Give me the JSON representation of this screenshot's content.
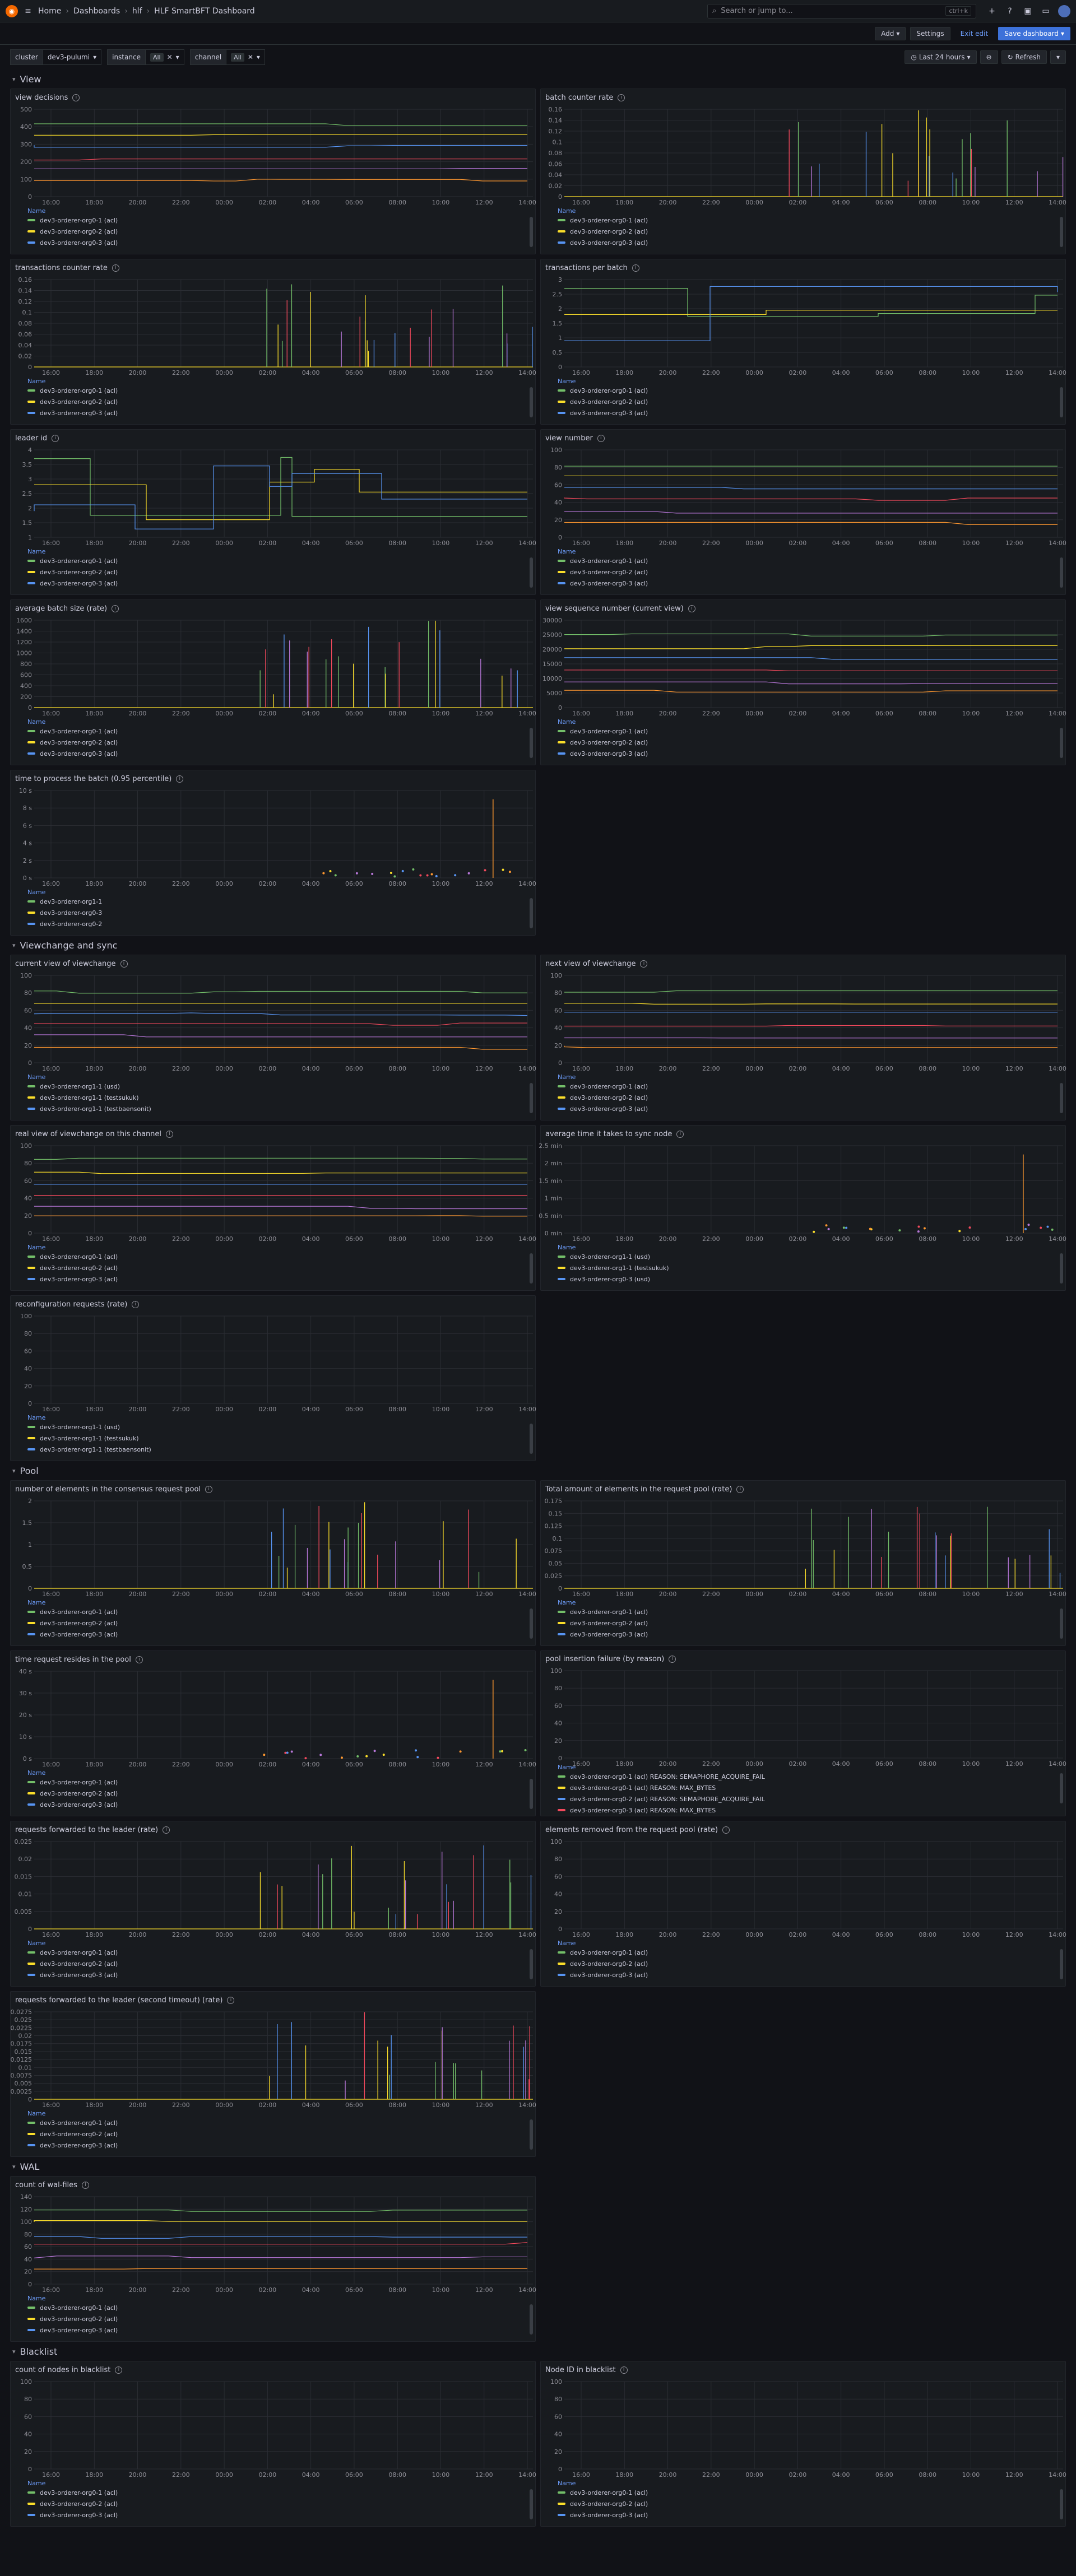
{
  "breadcrumb": {
    "home": "Home",
    "dashboards": "Dashboards",
    "folder": "hlf",
    "title": "HLF SmartBFT Dashboard"
  },
  "search": {
    "placeholder": "Search or jump to...",
    "shortcut": "ctrl+k"
  },
  "toolbar": {
    "add": "Add",
    "settings": "Settings",
    "exit": "Exit edit",
    "save": "Save dashboard"
  },
  "variables": [
    {
      "label": "cluster",
      "value": "dev3-pulumi"
    },
    {
      "label": "instance",
      "value": "All"
    },
    {
      "label": "channel",
      "value": "All"
    }
  ],
  "time": {
    "range": "Last 24 hours",
    "refresh": "Refresh"
  },
  "legend_header": "Name",
  "xticks": [
    "16:00",
    "18:00",
    "20:00",
    "22:00",
    "00:00",
    "02:00",
    "04:00",
    "06:00",
    "08:00",
    "10:00",
    "12:00",
    "14:00"
  ],
  "rows": [
    {
      "title": "View",
      "panels": [
        {
          "title": "view decisions",
          "yticks": [
            "500",
            "400",
            "300",
            "200",
            "100",
            "0"
          ],
          "legend": [
            "dev3-orderer-org0-1 (acl)",
            "dev3-orderer-org0-2 (acl)",
            "dev3-orderer-org0-3 (acl)"
          ],
          "kind": "lines"
        },
        {
          "title": "batch counter rate",
          "yticks": [
            "0.16",
            "0.14",
            "0.12",
            "0.1",
            "0.08",
            "0.06",
            "0.04",
            "0.02",
            "0"
          ],
          "legend": [
            "dev3-orderer-org0-1 (acl)",
            "dev3-orderer-org0-2 (acl)",
            "dev3-orderer-org0-3 (acl)"
          ],
          "kind": "spikes"
        },
        {
          "title": "transactions counter rate",
          "yticks": [
            "0.16",
            "0.14",
            "0.12",
            "0.1",
            "0.08",
            "0.06",
            "0.04",
            "0.02",
            "0"
          ],
          "legend": [
            "dev3-orderer-org0-1 (acl)",
            "dev3-orderer-org0-2 (acl)",
            "dev3-orderer-org0-3 (acl)"
          ],
          "kind": "spikes"
        },
        {
          "title": "transactions per batch",
          "yticks": [
            "3",
            "2.5",
            "2",
            "1.5",
            "1",
            "0.5",
            "0"
          ],
          "legend": [
            "dev3-orderer-org0-1 (acl)",
            "dev3-orderer-org0-2 (acl)",
            "dev3-orderer-org0-3 (acl)"
          ],
          "kind": "steps"
        },
        {
          "title": "leader id",
          "yticks": [
            "4",
            "3.5",
            "3",
            "2.5",
            "2",
            "1.5",
            "1"
          ],
          "legend": [
            "dev3-orderer-org0-1 (acl)",
            "dev3-orderer-org0-2 (acl)",
            "dev3-orderer-org0-3 (acl)"
          ],
          "kind": "steps"
        },
        {
          "title": "view number",
          "yticks": [
            "100",
            "80",
            "60",
            "40",
            "20",
            "0"
          ],
          "legend": [
            "dev3-orderer-org0-1 (acl)",
            "dev3-orderer-org0-2 (acl)",
            "dev3-orderer-org0-3 (acl)"
          ],
          "kind": "lines"
        },
        {
          "title": "average batch size (rate)",
          "yticks": [
            "1600",
            "1400",
            "1200",
            "1000",
            "800",
            "600",
            "400",
            "200",
            "0"
          ],
          "legend": [
            "dev3-orderer-org0-1 (acl)",
            "dev3-orderer-org0-2 (acl)",
            "dev3-orderer-org0-3 (acl)"
          ],
          "kind": "spikes"
        },
        {
          "title": "view sequence number (current view)",
          "yticks": [
            "30000",
            "25000",
            "20000",
            "15000",
            "10000",
            "5000",
            "0"
          ],
          "legend": [
            "dev3-orderer-org0-1 (acl)",
            "dev3-orderer-org0-2 (acl)",
            "dev3-orderer-org0-3 (acl)"
          ],
          "kind": "lines"
        },
        {
          "title": "time to process the batch (0.95 percentile)",
          "yticks": [
            "10 s",
            "8 s",
            "6 s",
            "4 s",
            "2 s",
            "0 s"
          ],
          "legend": [
            "dev3-orderer-org1-1",
            "dev3-orderer-org0-3",
            "dev3-orderer-org0-2"
          ],
          "kind": "dots"
        }
      ]
    },
    {
      "title": "Viewchange and sync",
      "panels": [
        {
          "title": "current view of viewchange",
          "yticks": [
            "100",
            "80",
            "60",
            "40",
            "20",
            "0"
          ],
          "legend": [
            "dev3-orderer-org1-1 (usd)",
            "dev3-orderer-org1-1 (testsukuk)",
            "dev3-orderer-org1-1 (testbaensonit)"
          ],
          "kind": "lines"
        },
        {
          "title": "next view of viewchange",
          "yticks": [
            "100",
            "80",
            "60",
            "40",
            "20",
            "0"
          ],
          "legend": [
            "dev3-orderer-org0-1 (acl)",
            "dev3-orderer-org0-2 (acl)",
            "dev3-orderer-org0-3 (acl)"
          ],
          "kind": "lines"
        },
        {
          "title": "real view of viewchange on this channel",
          "yticks": [
            "100",
            "80",
            "60",
            "40",
            "20",
            "0"
          ],
          "legend": [
            "dev3-orderer-org0-1 (acl)",
            "dev3-orderer-org0-2 (acl)",
            "dev3-orderer-org0-3 (acl)"
          ],
          "kind": "lines"
        },
        {
          "title": "average time it takes to sync node",
          "yticks": [
            "2.5 min",
            "2 min",
            "1.5 min",
            "1 min",
            "0.5 min",
            "0 min"
          ],
          "legend": [
            "dev3-orderer-org1-1 (usd)",
            "dev3-orderer-org1-1 (testsukuk)",
            "dev3-orderer-org0-3 (usd)"
          ],
          "kind": "dots"
        },
        {
          "title": "reconfiguration requests (rate)",
          "yticks": [
            "100",
            "80",
            "60",
            "40",
            "20",
            "0"
          ],
          "legend": [
            "dev3-orderer-org1-1 (usd)",
            "dev3-orderer-org1-1 (testsukuk)",
            "dev3-orderer-org1-1 (testbaensonit)"
          ],
          "kind": "flat"
        }
      ]
    },
    {
      "title": "Pool",
      "panels": [
        {
          "title": "number of elements in the consensus request pool",
          "yticks": [
            "2",
            "1.5",
            "1",
            "0.5",
            "0"
          ],
          "legend": [
            "dev3-orderer-org0-1 (acl)",
            "dev3-orderer-org0-2 (acl)",
            "dev3-orderer-org0-3 (acl)"
          ],
          "kind": "spikes"
        },
        {
          "title": "Total amount of elements in the request pool (rate)",
          "yticks": [
            "0.175",
            "0.15",
            "0.125",
            "0.1",
            "0.075",
            "0.05",
            "0.025",
            "0"
          ],
          "legend": [
            "dev3-orderer-org0-1 (acl)",
            "dev3-orderer-org0-2 (acl)",
            "dev3-orderer-org0-3 (acl)"
          ],
          "kind": "spikes"
        },
        {
          "title": "time request resides in the pool",
          "yticks": [
            "40 s",
            "30 s",
            "20 s",
            "10 s",
            "0 s"
          ],
          "legend": [
            "dev3-orderer-org0-1 (acl)",
            "dev3-orderer-org0-2 (acl)",
            "dev3-orderer-org0-3 (acl)"
          ],
          "kind": "dots"
        },
        {
          "title": "pool insertion failure (by reason)",
          "yticks": [
            "100",
            "80",
            "60",
            "40",
            "20",
            "0"
          ],
          "legend": [
            "dev3-orderer-org0-1 (acl) REASON: SEMAPHORE_ACQUIRE_FAIL",
            "dev3-orderer-org0-1 (acl) REASON: MAX_BYTES",
            "dev3-orderer-org0-2 (acl) REASON: SEMAPHORE_ACQUIRE_FAIL",
            "dev3-orderer-org0-3 (acl) REASON: MAX_BYTES"
          ],
          "kind": "flat"
        },
        {
          "title": "requests forwarded to the leader (rate)",
          "yticks": [
            "0.025",
            "0.02",
            "0.015",
            "0.01",
            "0.005",
            "0"
          ],
          "legend": [
            "dev3-orderer-org0-1 (acl)",
            "dev3-orderer-org0-2 (acl)",
            "dev3-orderer-org0-3 (acl)"
          ],
          "kind": "spikes"
        },
        {
          "title": "elements removed from the request pool (rate)",
          "yticks": [
            "100",
            "80",
            "60",
            "40",
            "20",
            "0"
          ],
          "legend": [
            "dev3-orderer-org0-1 (acl)",
            "dev3-orderer-org0-2 (acl)",
            "dev3-orderer-org0-3 (acl)"
          ],
          "kind": "flat"
        },
        {
          "title": "requests forwarded to the leader (second timeout) (rate)",
          "yticks": [
            "0.0275",
            "0.025",
            "0.0225",
            "0.02",
            "0.0175",
            "0.015",
            "0.0125",
            "0.01",
            "0.0075",
            "0.005",
            "0.0025",
            "0"
          ],
          "legend": [
            "dev3-orderer-org0-1 (acl)",
            "dev3-orderer-org0-2 (acl)",
            "dev3-orderer-org0-3 (acl)"
          ],
          "kind": "spikes"
        }
      ]
    },
    {
      "title": "WAL",
      "panels": [
        {
          "title": "count of wal-files",
          "yticks": [
            "140",
            "120",
            "100",
            "80",
            "60",
            "40",
            "20",
            "0"
          ],
          "legend": [
            "dev3-orderer-org0-1 (acl)",
            "dev3-orderer-org0-2 (acl)",
            "dev3-orderer-org0-3 (acl)"
          ],
          "kind": "lines"
        }
      ]
    },
    {
      "title": "Blacklist",
      "panels": [
        {
          "title": "count of nodes in blacklist",
          "yticks": [
            "100",
            "80",
            "60",
            "40",
            "20",
            "0"
          ],
          "legend": [
            "dev3-orderer-org0-1 (acl)",
            "dev3-orderer-org0-2 (acl)",
            "dev3-orderer-org0-3 (acl)"
          ],
          "kind": "flat"
        },
        {
          "title": "Node ID in blacklist",
          "yticks": [
            "100",
            "80",
            "60",
            "40",
            "20",
            "0"
          ],
          "legend": [
            "dev3-orderer-org0-1 (acl)",
            "dev3-orderer-org0-2 (acl)",
            "dev3-orderer-org0-3 (acl)"
          ],
          "kind": "flat"
        }
      ]
    }
  ],
  "colors": {
    "series": [
      "#73bf69",
      "#fade2a",
      "#5794f2",
      "#f2495c",
      "#b877d9",
      "#ff9830"
    ],
    "grid": "#2a2d33"
  }
}
